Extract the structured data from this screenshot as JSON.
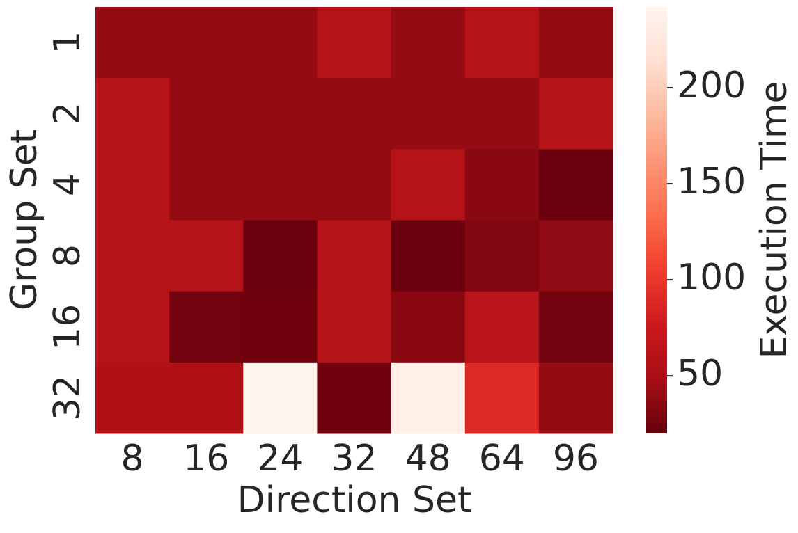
{
  "chart_data": {
    "type": "heatmap",
    "x_label": "Direction Set",
    "y_label": "Group Set",
    "colorbar_label": "Execution Time",
    "categories": [
      "8",
      "16",
      "24",
      "32",
      "48",
      "64",
      "96"
    ],
    "y_categories": [
      "1",
      "2",
      "4",
      "8",
      "16",
      "32"
    ],
    "values": [
      [
        40,
        40,
        40,
        60,
        40,
        60,
        40
      ],
      [
        60,
        40,
        40,
        40,
        40,
        40,
        60
      ],
      [
        60,
        40,
        40,
        40,
        60,
        35,
        22
      ],
      [
        60,
        60,
        22,
        60,
        22,
        32,
        38
      ],
      [
        60,
        25,
        24,
        60,
        35,
        62,
        25
      ],
      [
        55,
        55,
        240,
        24,
        235,
        90,
        40
      ]
    ],
    "colormap": [
      "#67000d",
      "#a50f15",
      "#cb181d",
      "#ef3b2c",
      "#fb6a4a",
      "#fc9272",
      "#fcbba1",
      "#fee0d2",
      "#fff5f0"
    ],
    "clim": [
      20,
      242
    ],
    "cticks": [
      50,
      100,
      150,
      200
    ]
  }
}
